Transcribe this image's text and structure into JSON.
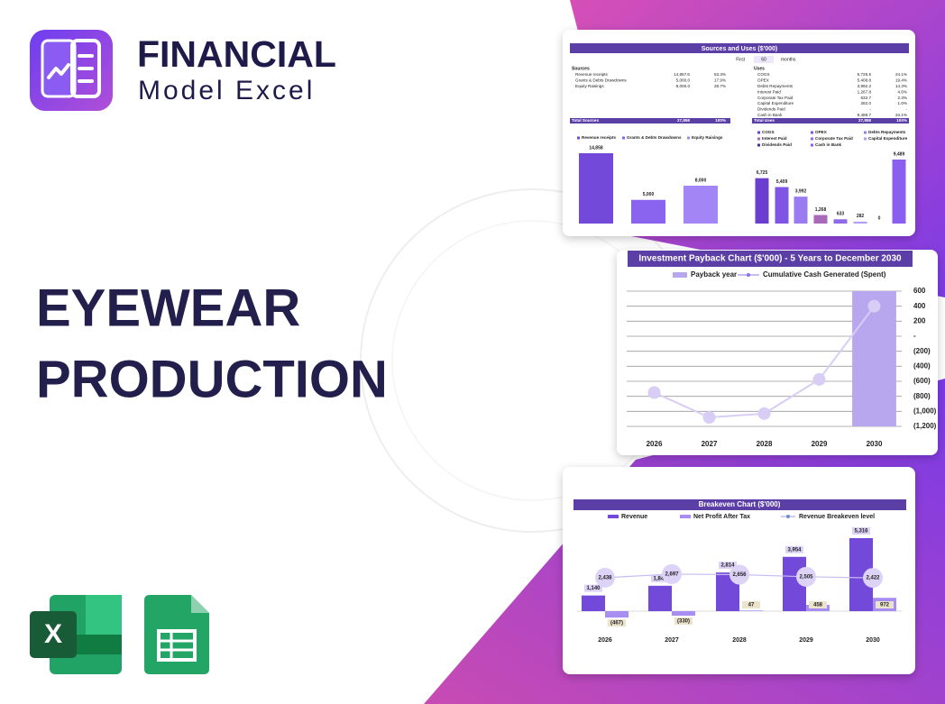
{
  "brand": {
    "name": "FINANCIAL",
    "tagline": "Model Excel"
  },
  "headline": {
    "lines": [
      "EYEWEAR",
      "PRODUCTION"
    ]
  },
  "sources_uses": {
    "title": "Sources and Uses ($'000)",
    "period_label": "First",
    "period_value": "60",
    "period_unit": "months",
    "sources": {
      "header": "Sources",
      "rows": [
        [
          "Revenue receipts",
          "14,857.6",
          "53.3%"
        ],
        [
          "Grants & Debts Drawdowns",
          "5,000.0",
          "17.9%"
        ],
        [
          "Equity Raisings",
          "8,000.0",
          "28.7%"
        ]
      ],
      "total": [
        "Total Sources",
        "27,858",
        "100%"
      ]
    },
    "uses": {
      "header": "Uses",
      "rows": [
        [
          "COGS",
          "6,725.5",
          "24.1%"
        ],
        [
          "OPEX",
          "5,408.8",
          "19.4%"
        ],
        [
          "Debts Repayments",
          "3,992.2",
          "14.3%"
        ],
        [
          "Interest Paid",
          "1,267.8",
          "4.6%"
        ],
        [
          "Corporate Tax Paid",
          "632.7",
          "2.3%"
        ],
        [
          "Capital Expenditure",
          "282.0",
          "1.0%"
        ],
        [
          "Dividends Paid",
          "-",
          "-"
        ],
        [
          "Cash in Bank",
          "9,488.7",
          "34.1%"
        ]
      ],
      "total": [
        "Total Uses",
        "27,858",
        "100%"
      ]
    },
    "sources_chart": {
      "type": "bar",
      "categories": [
        "Revenue receipts",
        "Grants & Debts Drawdowns",
        "Equity Raisings"
      ],
      "values": [
        14858,
        5000,
        8000
      ],
      "value_labels": [
        "14,858",
        "5,000",
        "8,000"
      ],
      "colors": [
        "#7349d9",
        "#8a64ee",
        "#a485f6"
      ]
    },
    "uses_chart": {
      "type": "bar",
      "categories": [
        "COGS",
        "OPEX",
        "Debts Repayments",
        "Interest Paid",
        "Corporate Tax Paid",
        "Capital Expenditure",
        "Dividends Paid",
        "Cash in Bank"
      ],
      "values": [
        6725,
        5409,
        3992,
        1268,
        633,
        282,
        0,
        9489
      ],
      "value_labels": [
        "6,725",
        "5,409",
        "3,992",
        "1,268",
        "633",
        "282",
        "0",
        "9,489"
      ],
      "colors": [
        "#6a3fd0",
        "#7e56e3",
        "#9a7cf0",
        "#a86ab8",
        "#8e69e8",
        "#b39cf5",
        "#4a2f96",
        "#8a5ff0"
      ]
    }
  },
  "payback_chart": {
    "type": "bar-line",
    "title": "Investment Payback Chart ($'000) - 5 Years to December 2030",
    "categories": [
      "2026",
      "2027",
      "2028",
      "2029",
      "2030"
    ],
    "series": [
      {
        "name": "Payback year",
        "color": "#b8a6ee",
        "type": "bar",
        "axis": "y2",
        "values": [
          0,
          0,
          0,
          0,
          1
        ]
      },
      {
        "name": "Cumulative Cash Generated (Spent)",
        "color": "#d8cdf5",
        "type": "line",
        "values": [
          -750,
          -1080,
          -1030,
          -575,
          400
        ]
      }
    ],
    "ylim": [
      -1200,
      600
    ],
    "yticks": [
      600,
      400,
      200,
      {
        "value": 0,
        "label": "-"
      },
      {
        "value": -200,
        "label": "(200)"
      },
      {
        "value": -400,
        "label": "(400)"
      },
      {
        "value": -600,
        "label": "(600)"
      },
      {
        "value": -800,
        "label": "(800)"
      },
      {
        "value": -1000,
        "label": "(1,000)"
      },
      {
        "value": -1200,
        "label": "(1,200)"
      }
    ],
    "y2lim": [
      0,
      1
    ],
    "grid": true
  },
  "breakeven_chart": {
    "type": "bar-line",
    "title": "Breakeven Chart ($'000)",
    "categories": [
      "2026",
      "2027",
      "2028",
      "2029",
      "2030"
    ],
    "series": [
      {
        "name": "Revenue",
        "color": "#7349d9",
        "type": "bar",
        "values": [
          1140,
          1848,
          2814,
          3954,
          5316
        ],
        "value_labels": [
          "1,140",
          "1,848",
          "2,814",
          "3,954",
          "5,316"
        ]
      },
      {
        "name": "Net Profit After Tax",
        "color": "#a88ef3",
        "type": "bar",
        "values": [
          -467,
          -330,
          47,
          458,
          972
        ],
        "value_labels": [
          "(467)",
          "(330)",
          "47",
          "458",
          "972"
        ]
      },
      {
        "name": "Revenue Breakeven level",
        "color": "#ddd3f7",
        "type": "line",
        "values": [
          2438,
          2697,
          2656,
          2505,
          2422
        ],
        "value_labels": [
          "2,438",
          "2,697",
          "2,656",
          "2,505",
          "2,422"
        ]
      }
    ]
  },
  "icons": {
    "excel_letter": "X"
  }
}
